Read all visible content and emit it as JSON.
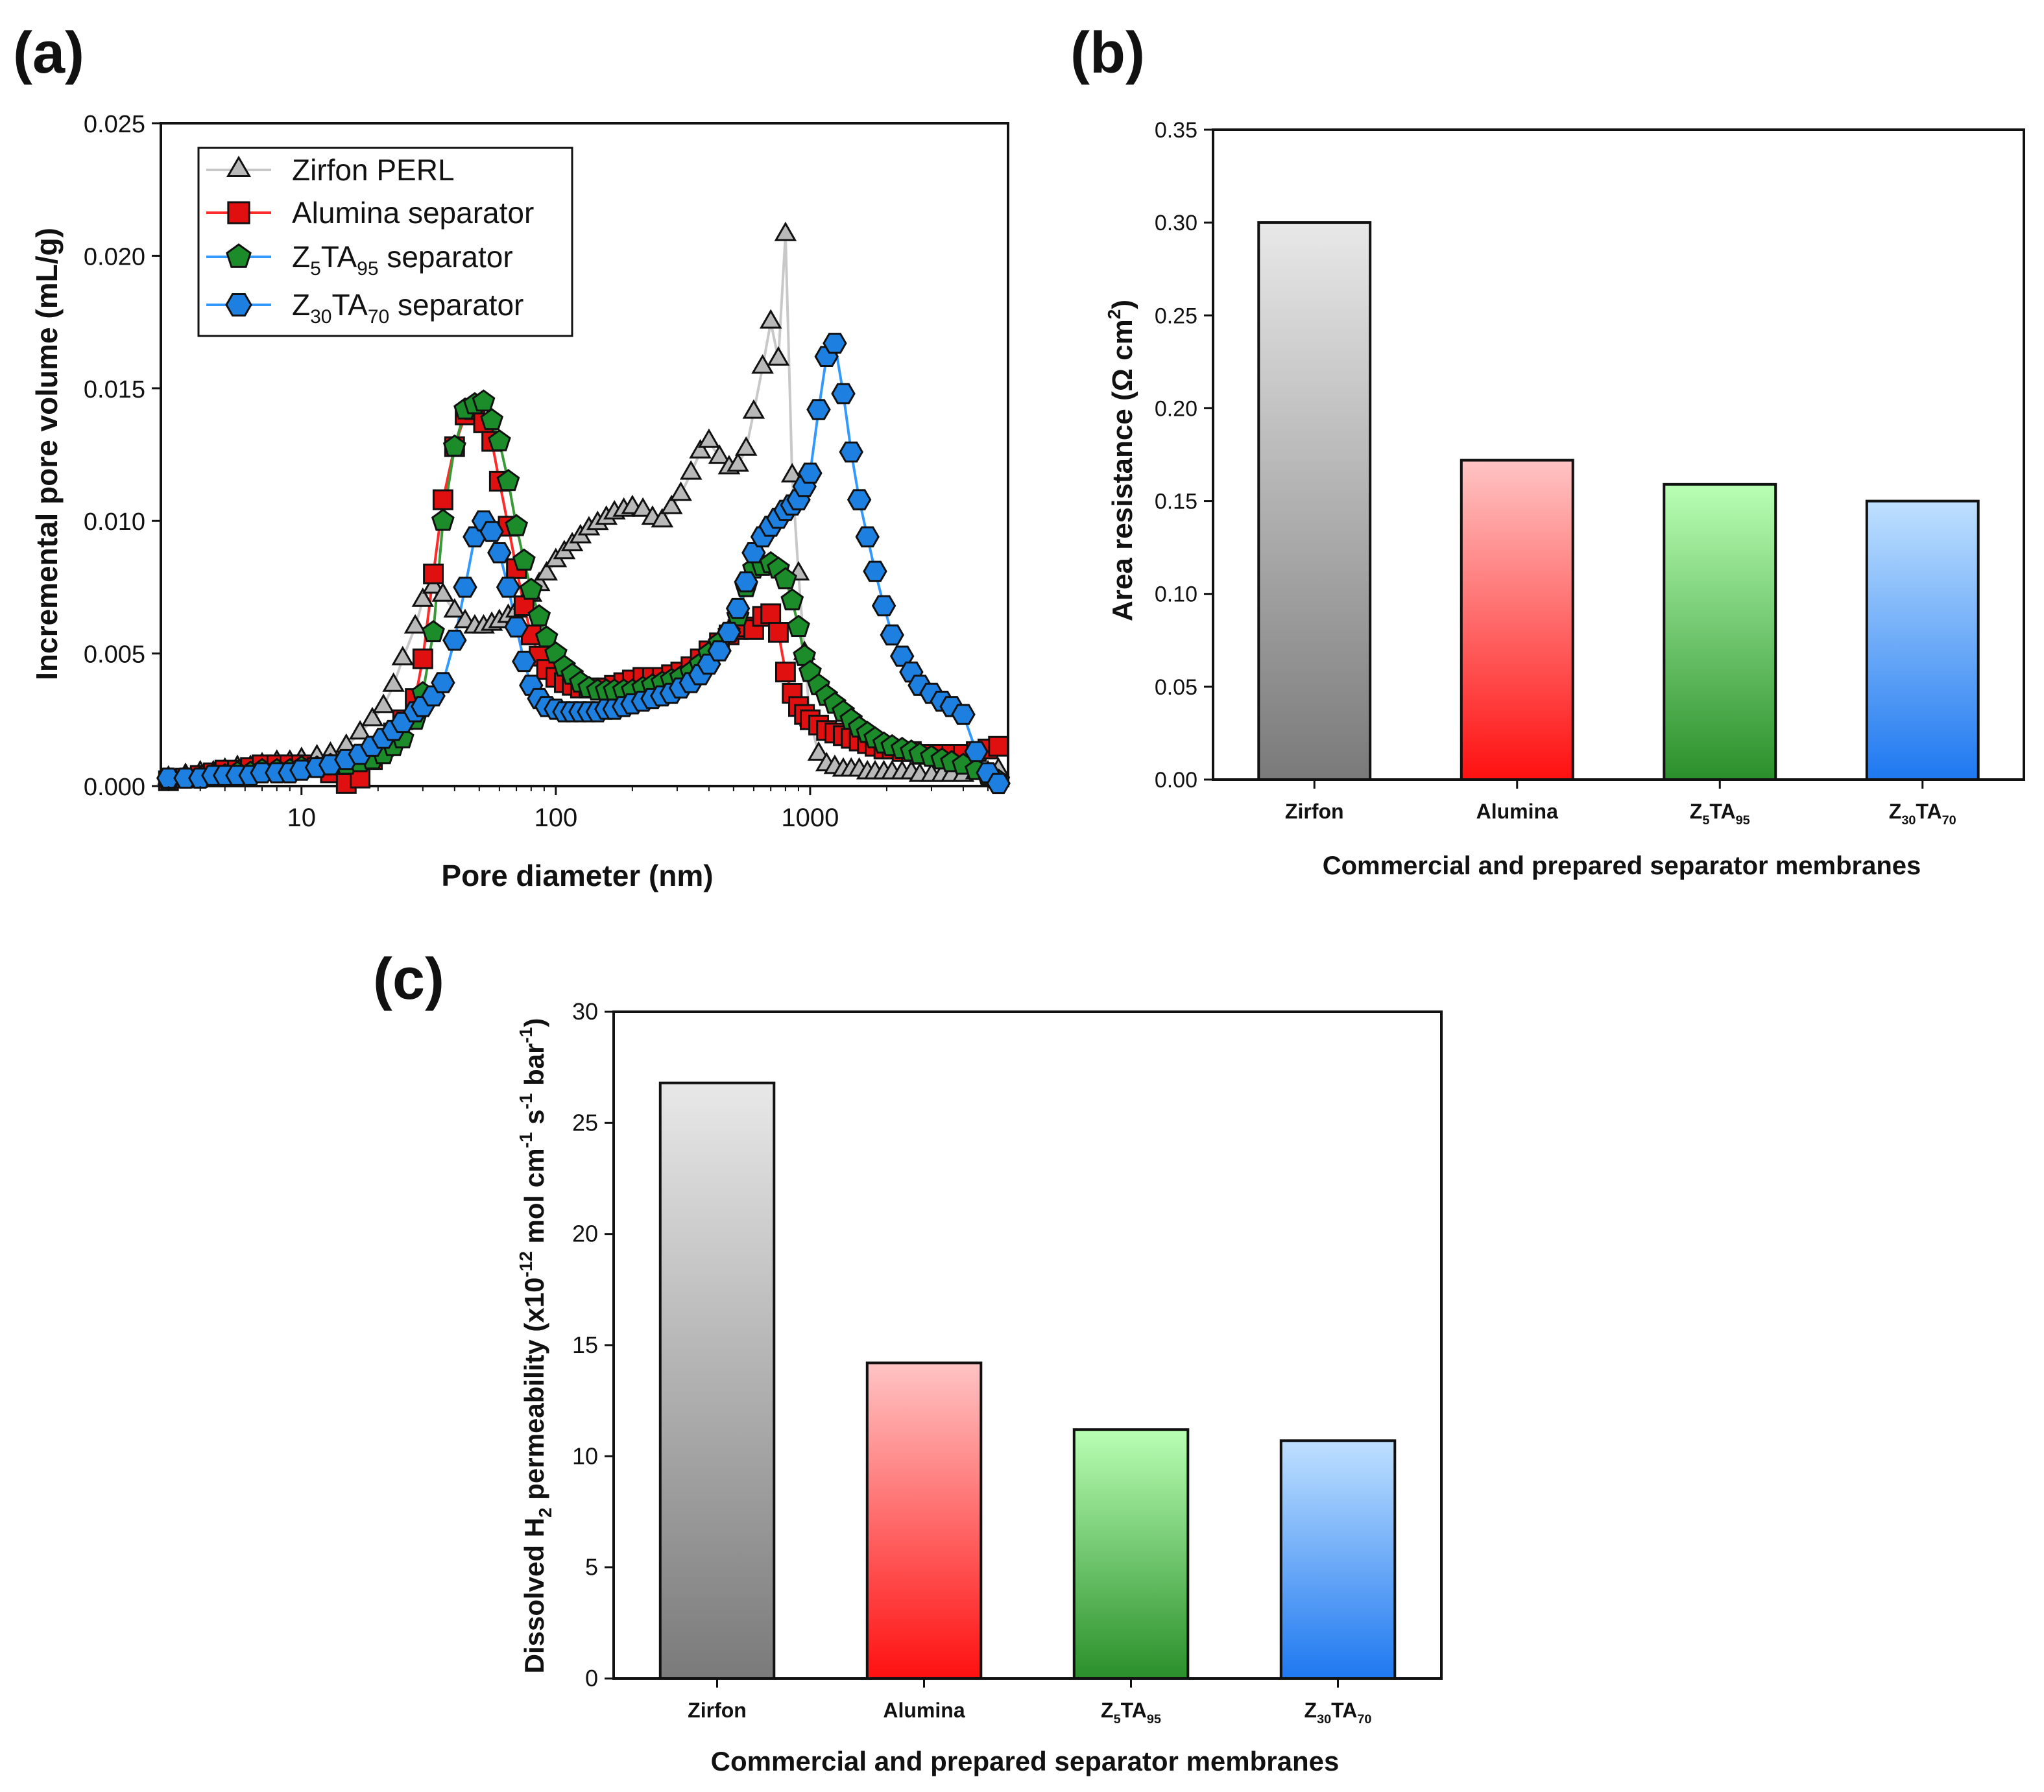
{
  "colors": {
    "zirfon": "#b9b9b9",
    "alumina": "#e01010",
    "z5ta95": "#1c8c2a",
    "z30ta70": "#1d7fe0",
    "zirfon_line": "#c8c8c8",
    "alumina_line": "#ff2a2a",
    "z5ta95_line": "#3a9a3a",
    "z30ta70_line": "#3399ff"
  },
  "chart_data": [
    {
      "id": "a",
      "panel_label": "(a)",
      "type": "scatter",
      "xscale": "log",
      "xlabel": "Pore diameter (nm)",
      "ylabel": "Incremental pore volume (mL/g)",
      "xlim": [
        2.8,
        6000
      ],
      "ylim": [
        0,
        0.025
      ],
      "xticks": [
        10,
        100,
        1000
      ],
      "xtick_labels": [
        "10",
        "100",
        "1000"
      ],
      "yticks": [
        0.0,
        0.005,
        0.01,
        0.015,
        0.02,
        0.025
      ],
      "ytick_labels": [
        "0.000",
        "0.005",
        "0.010",
        "0.015",
        "0.020",
        "0.025"
      ],
      "legend_position": "top-left",
      "series": [
        {
          "key": "zirfon",
          "legend": {
            "main": "Zirfon PERL",
            "z_sub": "",
            "mid": "",
            "ta_sub": "",
            "tail": ""
          },
          "marker": "triangle",
          "x": [
            3.0,
            3.5,
            4.0,
            4.5,
            5.0,
            5.6,
            6.3,
            7.0,
            8.0,
            9.0,
            10,
            11.5,
            13,
            15,
            17,
            19,
            21,
            23,
            25,
            28,
            30,
            33,
            36,
            40,
            44,
            48,
            52,
            56,
            60,
            65,
            70,
            75,
            80,
            86,
            92,
            100,
            108,
            116,
            125,
            135,
            146,
            158,
            170,
            185,
            200,
            220,
            240,
            262,
            285,
            310,
            340,
            370,
            400,
            440,
            480,
            520,
            560,
            600,
            650,
            700,
            750,
            800,
            850,
            900,
            950,
            1000,
            1080,
            1160,
            1250,
            1350,
            1450,
            1560,
            1680,
            1800,
            1950,
            2100,
            2300,
            2500,
            2700,
            3000,
            3300,
            3600,
            4000,
            4500,
            5000,
            5500
          ],
          "y": [
            0.0003,
            0.0004,
            0.0005,
            0.0005,
            0.0006,
            0.0007,
            0.0007,
            0.0008,
            0.0009,
            0.0009,
            0.001,
            0.0011,
            0.0012,
            0.0015,
            0.002,
            0.0025,
            0.003,
            0.0038,
            0.0048,
            0.006,
            0.007,
            0.0075,
            0.0072,
            0.0066,
            0.0062,
            0.006,
            0.006,
            0.0061,
            0.0062,
            0.0064,
            0.0066,
            0.0069,
            0.0072,
            0.0076,
            0.008,
            0.0085,
            0.0088,
            0.0091,
            0.0094,
            0.0097,
            0.0099,
            0.0101,
            0.0103,
            0.0104,
            0.0105,
            0.0104,
            0.0101,
            0.01,
            0.0105,
            0.011,
            0.0118,
            0.0126,
            0.013,
            0.0124,
            0.012,
            0.0121,
            0.0127,
            0.0141,
            0.0158,
            0.0175,
            0.0161,
            0.0208,
            0.0117,
            0.008,
            0.005,
            0.0025,
            0.0012,
            0.0008,
            0.0007,
            0.0006,
            0.0006,
            0.0006,
            0.0005,
            0.0005,
            0.0005,
            0.0005,
            0.0005,
            0.0005,
            0.0004,
            0.0004,
            0.0004,
            0.0004,
            0.0004,
            0.0005,
            0.0005,
            0.0006
          ]
        },
        {
          "key": "alumina",
          "legend": {
            "main": "Alumina separator",
            "z_sub": "",
            "mid": "",
            "ta_sub": "",
            "tail": ""
          },
          "marker": "square",
          "x": [
            3.0,
            3.5,
            4.0,
            4.5,
            5.0,
            5.6,
            6.3,
            7.0,
            8.0,
            9.0,
            10,
            11.5,
            13,
            15,
            17,
            19,
            21,
            23,
            25,
            28,
            30,
            33,
            36,
            40,
            44,
            48,
            52,
            56,
            60,
            65,
            70,
            75,
            80,
            86,
            92,
            100,
            108,
            116,
            125,
            135,
            146,
            158,
            170,
            185,
            200,
            220,
            240,
            262,
            285,
            310,
            340,
            370,
            400,
            440,
            480,
            520,
            560,
            600,
            650,
            700,
            750,
            800,
            850,
            900,
            950,
            1000,
            1080,
            1160,
            1250,
            1350,
            1450,
            1560,
            1680,
            1800,
            1950,
            2100,
            2300,
            2500,
            2700,
            3000,
            3300,
            3600,
            4000,
            4500,
            5000,
            5500
          ],
          "y": [
            0.0002,
            0.0003,
            0.0004,
            0.0005,
            0.0006,
            0.0006,
            0.0007,
            0.0008,
            0.0008,
            0.0008,
            0.0008,
            0.0007,
            0.0005,
            0.0001,
            0.0003,
            0.001,
            0.0015,
            0.002,
            0.0025,
            0.0033,
            0.0048,
            0.008,
            0.0108,
            0.0128,
            0.014,
            0.0142,
            0.0137,
            0.013,
            0.0115,
            0.0098,
            0.0082,
            0.0068,
            0.0057,
            0.0049,
            0.0044,
            0.0041,
            0.0039,
            0.0038,
            0.0037,
            0.0037,
            0.0037,
            0.0037,
            0.0038,
            0.0039,
            0.004,
            0.0041,
            0.0041,
            0.0041,
            0.0042,
            0.0043,
            0.0045,
            0.0048,
            0.0051,
            0.0054,
            0.0057,
            0.0059,
            0.006,
            0.0059,
            0.0064,
            0.0065,
            0.0058,
            0.0043,
            0.0035,
            0.003,
            0.0027,
            0.0025,
            0.0023,
            0.0021,
            0.002,
            0.0019,
            0.0018,
            0.0017,
            0.0016,
            0.0015,
            0.0014,
            0.0014,
            0.0013,
            0.0013,
            0.0012,
            0.0012,
            0.0012,
            0.0012,
            0.0012,
            0.0013,
            0.0014,
            0.0015
          ]
        },
        {
          "key": "z5ta95",
          "legend": {
            "main": "",
            "z_sub": "5",
            "mid": "TA",
            "ta_sub": "95",
            "tail": " separator"
          },
          "marker": "pentagon",
          "x": [
            3.0,
            3.5,
            4.0,
            4.5,
            5.0,
            5.6,
            6.3,
            7.0,
            8.0,
            9.0,
            10,
            11.5,
            13,
            15,
            17,
            19,
            21,
            23,
            25,
            28,
            30,
            33,
            36,
            40,
            44,
            48,
            52,
            56,
            60,
            65,
            70,
            75,
            80,
            86,
            92,
            100,
            108,
            116,
            125,
            135,
            146,
            158,
            170,
            185,
            200,
            220,
            240,
            262,
            285,
            310,
            340,
            370,
            400,
            440,
            480,
            520,
            560,
            600,
            650,
            700,
            750,
            800,
            850,
            900,
            950,
            1000,
            1080,
            1160,
            1250,
            1350,
            1450,
            1560,
            1680,
            1800,
            1950,
            2100,
            2300,
            2500,
            2700,
            3000,
            3300,
            3600,
            4000,
            4500,
            5000,
            5500
          ],
          "y": [
            0.0002,
            0.0003,
            0.0003,
            0.0004,
            0.0004,
            0.0005,
            0.0005,
            0.0006,
            0.0006,
            0.0006,
            0.0007,
            0.0007,
            0.0008,
            0.0008,
            0.0009,
            0.001,
            0.0012,
            0.0015,
            0.0018,
            0.0025,
            0.0035,
            0.0058,
            0.01,
            0.0128,
            0.0142,
            0.0144,
            0.0145,
            0.0138,
            0.013,
            0.0115,
            0.0098,
            0.0085,
            0.0074,
            0.0064,
            0.0056,
            0.005,
            0.0045,
            0.0042,
            0.0039,
            0.0037,
            0.0036,
            0.0036,
            0.0036,
            0.0036,
            0.0036,
            0.0037,
            0.0038,
            0.0039,
            0.004,
            0.0041,
            0.0043,
            0.0046,
            0.005,
            0.0054,
            0.0058,
            0.0064,
            0.0075,
            0.0082,
            0.0083,
            0.0084,
            0.0082,
            0.0078,
            0.007,
            0.006,
            0.0049,
            0.0043,
            0.0038,
            0.0034,
            0.0031,
            0.0028,
            0.0025,
            0.0022,
            0.002,
            0.0018,
            0.0016,
            0.0015,
            0.0014,
            0.0013,
            0.0012,
            0.0011,
            0.001,
            0.0009,
            0.0008,
            0.0006,
            0.0004,
            0.0002
          ]
        },
        {
          "key": "z30ta70",
          "legend": {
            "main": "",
            "z_sub": "30",
            "mid": "TA",
            "ta_sub": "70",
            "tail": " separator"
          },
          "marker": "hexagon",
          "x": [
            3.0,
            3.5,
            4.0,
            4.5,
            5.0,
            5.6,
            6.3,
            7.0,
            8.0,
            9.0,
            10,
            11.5,
            13,
            15,
            17,
            19,
            21,
            23,
            25,
            28,
            30,
            33,
            36,
            40,
            44,
            48,
            52,
            56,
            60,
            65,
            70,
            75,
            80,
            86,
            92,
            100,
            108,
            116,
            125,
            135,
            146,
            158,
            170,
            185,
            200,
            220,
            240,
            262,
            285,
            310,
            340,
            370,
            400,
            440,
            480,
            520,
            560,
            600,
            650,
            700,
            750,
            800,
            850,
            900,
            950,
            1000,
            1080,
            1160,
            1250,
            1350,
            1450,
            1560,
            1680,
            1800,
            1950,
            2100,
            2300,
            2500,
            2700,
            3000,
            3300,
            3600,
            4000,
            4500,
            5000,
            5500
          ],
          "y": [
            0.0003,
            0.0003,
            0.0003,
            0.0004,
            0.0004,
            0.0004,
            0.0004,
            0.0005,
            0.0005,
            0.0005,
            0.0006,
            0.0007,
            0.0008,
            0.001,
            0.0012,
            0.0015,
            0.0018,
            0.0021,
            0.0024,
            0.0028,
            0.003,
            0.0034,
            0.0039,
            0.0055,
            0.0075,
            0.0094,
            0.01,
            0.0096,
            0.0088,
            0.0075,
            0.006,
            0.0047,
            0.0038,
            0.0033,
            0.003,
            0.0029,
            0.0028,
            0.0028,
            0.0028,
            0.0028,
            0.0028,
            0.0029,
            0.0029,
            0.003,
            0.0031,
            0.0032,
            0.0033,
            0.0034,
            0.0035,
            0.0037,
            0.0039,
            0.0042,
            0.0046,
            0.0051,
            0.0058,
            0.0067,
            0.0077,
            0.0088,
            0.0094,
            0.0098,
            0.0101,
            0.0104,
            0.0106,
            0.0108,
            0.0113,
            0.0118,
            0.0142,
            0.0162,
            0.0167,
            0.0148,
            0.0126,
            0.0108,
            0.0094,
            0.0081,
            0.0068,
            0.0057,
            0.0049,
            0.0043,
            0.0038,
            0.0035,
            0.0032,
            0.003,
            0.0027,
            0.0013,
            0.0005,
            0.0001
          ]
        }
      ]
    },
    {
      "id": "b",
      "panel_label": "(b)",
      "type": "bar",
      "categories": [
        {
          "main": "Zirfon",
          "z_sub": "",
          "mid": "",
          "ta_sub": ""
        },
        {
          "main": "Alumina",
          "z_sub": "",
          "mid": "",
          "ta_sub": ""
        },
        {
          "main": "Z",
          "z_sub": "5",
          "mid": "TA",
          "ta_sub": "95"
        },
        {
          "main": "Z",
          "z_sub": "30",
          "mid": "TA",
          "ta_sub": "70"
        }
      ],
      "values": [
        0.3,
        0.172,
        0.159,
        0.15
      ],
      "bar_colors": [
        "zirfon",
        "alumina",
        "z5ta95",
        "z30ta70"
      ],
      "xlabel": "Commercial and prepared separator membranes",
      "ylabel": {
        "main": "Area resistance  (Ω cm",
        "sup": "2",
        "tail": ")"
      },
      "ylim": [
        0,
        0.35
      ],
      "yticks": [
        0,
        0.05,
        0.1,
        0.15,
        0.2,
        0.25,
        0.3,
        0.35
      ],
      "ytick_labels": [
        "0.00",
        "0.05",
        "0.10",
        "0.15",
        "0.20",
        "0.25",
        "0.30",
        "0.35"
      ]
    },
    {
      "id": "c",
      "panel_label": "(c)",
      "type": "bar",
      "categories": [
        {
          "main": "Zirfon",
          "z_sub": "",
          "mid": "",
          "ta_sub": ""
        },
        {
          "main": "Alumina",
          "z_sub": "",
          "mid": "",
          "ta_sub": ""
        },
        {
          "main": "Z",
          "z_sub": "5",
          "mid": "TA",
          "ta_sub": "95"
        },
        {
          "main": "Z",
          "z_sub": "30",
          "mid": "TA",
          "ta_sub": "70"
        }
      ],
      "values": [
        26.8,
        14.2,
        11.2,
        10.7
      ],
      "bar_colors": [
        "zirfon",
        "alumina",
        "z5ta95",
        "z30ta70"
      ],
      "xlabel": "Commercial and prepared separator membranes",
      "ylabel": {
        "p1": "Dissolved H",
        "s1": "2",
        "p2": " permeability (x10",
        "e1": "-12",
        "p3": " mol cm",
        "e2": "-1",
        "p4": " s",
        "e3": "-1",
        "p5": " bar",
        "e4": "-1",
        "p6": ")"
      },
      "ylim": [
        0,
        30
      ],
      "yticks": [
        0,
        5,
        10,
        15,
        20,
        25,
        30
      ],
      "ytick_labels": [
        "0",
        "5",
        "10",
        "15",
        "20",
        "25",
        "30"
      ]
    }
  ]
}
